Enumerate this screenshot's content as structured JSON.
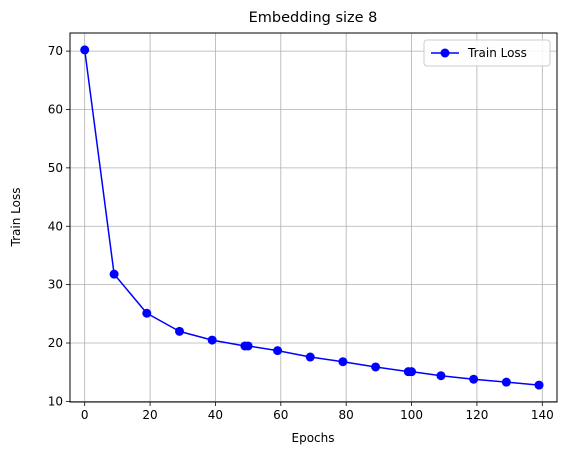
{
  "chart_data": {
    "type": "line",
    "title": "Embedding size 8",
    "xlabel": "Epochs",
    "ylabel": "Train Loss",
    "xlim": [
      -4.5,
      144.5
    ],
    "ylim": [
      9.9,
      73.1
    ],
    "xticks": [
      0,
      20,
      40,
      60,
      80,
      100,
      120,
      140
    ],
    "yticks": [
      10,
      20,
      30,
      40,
      50,
      60,
      70
    ],
    "grid": true,
    "legend_position": "top-right",
    "series": [
      {
        "name": "Train Loss",
        "color": "#0000ff",
        "marker": "circle",
        "x": [
          0,
          9,
          19,
          29,
          39,
          49,
          50,
          59,
          69,
          79,
          89,
          99,
          100,
          109,
          119,
          129,
          139
        ],
        "y": [
          70.2,
          31.8,
          25.1,
          22.0,
          20.5,
          19.5,
          19.5,
          18.7,
          17.6,
          16.8,
          15.9,
          15.1,
          15.1,
          14.4,
          13.8,
          13.3,
          12.8
        ]
      }
    ]
  }
}
